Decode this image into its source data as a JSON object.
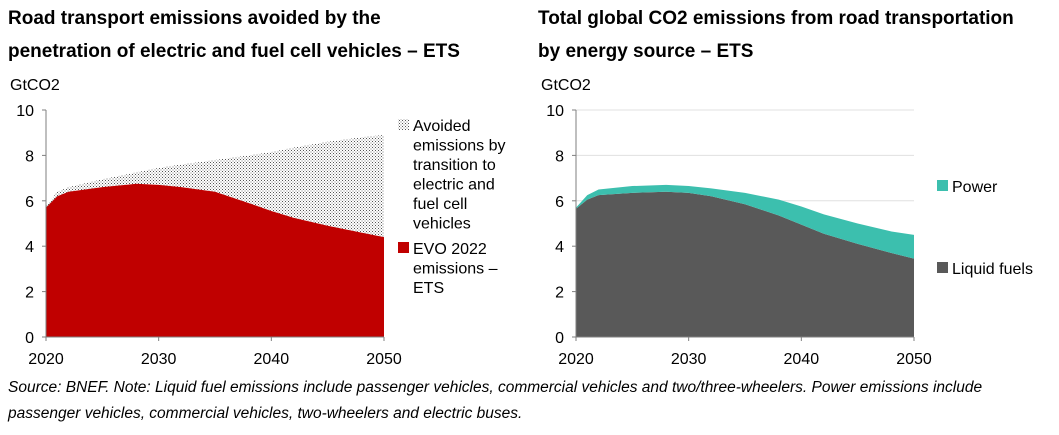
{
  "chart_data": [
    {
      "type": "area",
      "title": [
        "Road transport emissions avoided by the",
        "penetration of electric and fuel cell vehicles – ETS"
      ],
      "ylabel": "GtCO2",
      "xlim": [
        2020,
        2050
      ],
      "ylim": [
        0,
        10
      ],
      "xticks": [
        "2020",
        "2030",
        "2040",
        "2050"
      ],
      "yticks": [
        "0",
        "2",
        "4",
        "6",
        "8",
        "10"
      ],
      "grid": false,
      "legend_position": "right",
      "x": [
        2020,
        2021,
        2022,
        2025,
        2028,
        2030,
        2032,
        2035,
        2038,
        2040,
        2042,
        2045,
        2048,
        2050
      ],
      "series": [
        {
          "name": "EVO 2022 emissions – ETS",
          "color": "#c00000",
          "pattern": "solid",
          "values": [
            5.7,
            6.2,
            6.4,
            6.6,
            6.75,
            6.7,
            6.6,
            6.4,
            5.9,
            5.55,
            5.25,
            4.9,
            4.6,
            4.4
          ]
        },
        {
          "name": "Avoided emissions by transition to electric and fuel cell vehicles",
          "color": "#7f7f7f",
          "pattern": "dotted",
          "stack_total": [
            5.75,
            6.4,
            6.6,
            6.95,
            7.25,
            7.45,
            7.6,
            7.8,
            8.0,
            8.15,
            8.35,
            8.6,
            8.8,
            8.9
          ]
        }
      ],
      "legend": [
        {
          "label": [
            "Avoided",
            "emissions by",
            "transition to",
            "electric and",
            "fuel cell",
            "vehicles"
          ],
          "color": "#7f7f7f",
          "pattern": "dotted"
        },
        {
          "label": [
            "EVO 2022",
            "emissions –",
            "ETS"
          ],
          "color": "#c00000",
          "pattern": "solid"
        }
      ]
    },
    {
      "type": "area",
      "title": [
        "Total global CO2 emissions from road transportation",
        "by energy source – ETS"
      ],
      "ylabel": "GtCO2",
      "xlim": [
        2020,
        2050
      ],
      "ylim": [
        0,
        10
      ],
      "xticks": [
        "2020",
        "2030",
        "2040",
        "2050"
      ],
      "yticks": [
        "0",
        "2",
        "4",
        "6",
        "8",
        "10"
      ],
      "grid": true,
      "legend_position": "right",
      "x": [
        2020,
        2021,
        2022,
        2025,
        2028,
        2030,
        2032,
        2035,
        2038,
        2040,
        2042,
        2045,
        2048,
        2050
      ],
      "series": [
        {
          "name": "Liquid fuels",
          "color": "#595959",
          "values": [
            5.65,
            6.05,
            6.25,
            6.35,
            6.4,
            6.35,
            6.2,
            5.85,
            5.35,
            4.95,
            4.55,
            4.1,
            3.7,
            3.45
          ]
        },
        {
          "name": "Power",
          "color": "#3cbfae",
          "values": [
            0.05,
            0.2,
            0.25,
            0.3,
            0.3,
            0.3,
            0.35,
            0.5,
            0.7,
            0.8,
            0.85,
            0.9,
            0.95,
            1.05
          ]
        }
      ],
      "legend": [
        {
          "label": [
            "Power"
          ],
          "color": "#3cbfae"
        },
        {
          "label": [
            "Liquid fuels"
          ],
          "color": "#595959"
        }
      ]
    }
  ],
  "footer": {
    "source": "Source: BNEF. Note: Liquid fuel emissions include passenger vehicles, commercial vehicles and two/three-wheelers. Power emissions include passenger vehicles, commercial vehicles, two-wheelers and electric buses."
  }
}
